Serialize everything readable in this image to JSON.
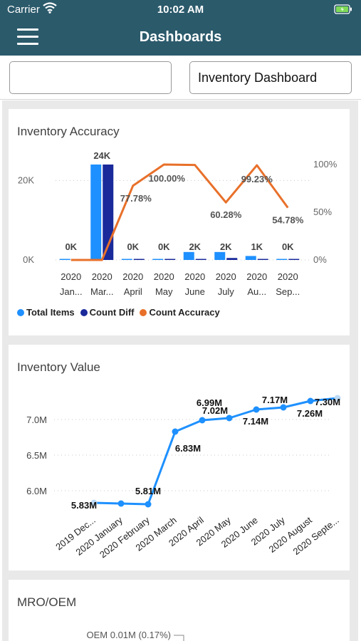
{
  "status_bar": {
    "carrier": "Carrier",
    "time": "10:02 AM"
  },
  "nav": {
    "title": "Dashboards"
  },
  "selectors": {
    "left_value": "",
    "right_value": "Inventory Dashboard"
  },
  "colors": {
    "header": "#2b5a6b",
    "total_items": "#1e90ff",
    "count_diff": "#1a2a9a",
    "count_accuracy": "#e8702a",
    "value_line": "#1e90ff"
  },
  "cards": [
    {
      "title": "Inventory Accuracy"
    },
    {
      "title": "Inventory Value"
    },
    {
      "title": "MRO/OEM"
    }
  ],
  "chart_data": [
    {
      "type": "bar",
      "title": "Inventory Accuracy",
      "categories": [
        "2020 Jan...",
        "2020 Mar...",
        "2020 April",
        "2020 May",
        "2020 June",
        "2020 July",
        "2020 Au...",
        "2020 Sep..."
      ],
      "category_lines": [
        [
          "2020",
          "Jan..."
        ],
        [
          "2020",
          "Mar..."
        ],
        [
          "2020",
          "April"
        ],
        [
          "2020",
          "May"
        ],
        [
          "2020",
          "June"
        ],
        [
          "2020",
          "July"
        ],
        [
          "2020",
          "Au..."
        ],
        [
          "2020",
          "Sep..."
        ]
      ],
      "series": [
        {
          "name": "Total Items",
          "type": "bar",
          "axis": "left",
          "values": [
            0,
            24000,
            0,
            0,
            2000,
            2000,
            1000,
            0
          ]
        },
        {
          "name": "Count Diff",
          "type": "bar",
          "axis": "left",
          "values": [
            0,
            24000,
            0,
            0,
            0,
            500,
            0,
            0
          ]
        },
        {
          "name": "Count Accuracy",
          "type": "line",
          "axis": "right",
          "values": [
            0,
            0,
            77.78,
            100.0,
            99.5,
            60.28,
            99.23,
            54.78
          ]
        }
      ],
      "bar_labels": [
        "0K",
        "24K",
        "0K",
        "0K",
        "2K",
        "2K",
        "1K",
        "0K"
      ],
      "line_labels": [
        {
          "index": 2,
          "text": "77.78%"
        },
        {
          "index": 3,
          "text": "100.00%"
        },
        {
          "index": 5,
          "text": "60.28%"
        },
        {
          "index": 6,
          "text": "99.23%"
        },
        {
          "index": 7,
          "text": "54.78%"
        }
      ],
      "y_left": {
        "ticks": [
          "0K",
          "20K"
        ],
        "tick_values": [
          0,
          20000
        ],
        "range": [
          0,
          24000
        ]
      },
      "y_right": {
        "ticks": [
          "0%",
          "50%",
          "100%"
        ],
        "tick_values": [
          0,
          50,
          100
        ],
        "range": [
          0,
          100
        ]
      },
      "legend": [
        "Total Items",
        "Count Diff",
        "Count Accuracy"
      ],
      "legend_position": "bottom-left"
    },
    {
      "type": "line",
      "title": "Inventory Value",
      "categories": [
        "2019 Dec...",
        "2020 January",
        "2020 February",
        "2020 March",
        "2020 April",
        "2020 May",
        "2020 June",
        "2020 July",
        "2020 August",
        "2020 Septe..."
      ],
      "series": [
        {
          "name": "Inventory Value",
          "values": [
            5.83,
            5.82,
            5.81,
            6.83,
            6.99,
            7.02,
            7.14,
            7.17,
            7.26,
            7.3
          ]
        }
      ],
      "point_labels": [
        {
          "index": 0,
          "text": "5.83M"
        },
        {
          "index": 2,
          "text": "5.81M"
        },
        {
          "index": 3,
          "text": "6.83M"
        },
        {
          "index": 4,
          "text": "6.99M"
        },
        {
          "index": 5,
          "text": "7.02M"
        },
        {
          "index": 6,
          "text": "7.14M"
        },
        {
          "index": 7,
          "text": "7.17M"
        },
        {
          "index": 8,
          "text": "7.26M"
        },
        {
          "index": 9,
          "text": "7.30M"
        }
      ],
      "y_axis": {
        "ticks": [
          "6.0M",
          "6.5M",
          "7.0M"
        ],
        "tick_values": [
          6.0,
          6.5,
          7.0
        ],
        "range": [
          5.75,
          7.35
        ]
      },
      "grid": true
    },
    {
      "type": "pie",
      "title": "MRO/OEM",
      "slice_labels": [
        "OEM 0.01M (0.17%)"
      ]
    }
  ]
}
